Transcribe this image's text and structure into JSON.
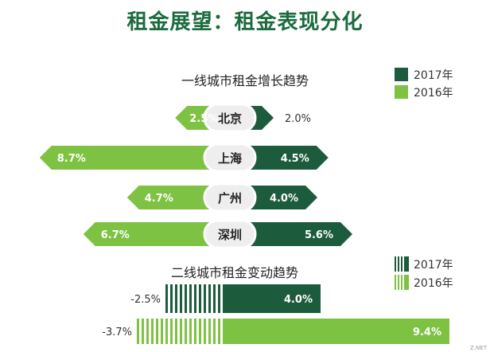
{
  "title": "租金展望：租金表现分化",
  "colors": {
    "y2017": "#1c5c3c",
    "y2016": "#7ec243",
    "title": "#1c6b3f"
  },
  "chart_data": [
    {
      "type": "bar",
      "subtitle": "一线城市租金增长趋势",
      "legend": [
        "2017年",
        "2016年"
      ],
      "categories": [
        "北京",
        "上海",
        "广州",
        "深圳"
      ],
      "series": [
        {
          "name": "2017年",
          "values": [
            2.0,
            4.5,
            4.0,
            5.6
          ],
          "labels": [
            "2.0%",
            "4.5%",
            "4.0%",
            "5.6%"
          ]
        },
        {
          "name": "2016年",
          "values": [
            2.5,
            8.7,
            4.7,
            6.7
          ],
          "labels": [
            "2.5%",
            "8.7%",
            "4.7%",
            "6.7%"
          ]
        }
      ]
    },
    {
      "type": "bar",
      "subtitle": "二线城市租金变动趋势",
      "legend": [
        "2017年",
        "2016年"
      ],
      "series": [
        {
          "name": "2017年",
          "negative": -2.5,
          "positive": 4.0,
          "labels": [
            "-2.5%",
            "4.0%"
          ]
        },
        {
          "name": "2016年",
          "negative": -3.7,
          "positive": 9.4,
          "labels": [
            "-3.7%",
            "9.4%"
          ]
        }
      ]
    }
  ],
  "watermark": "Z.NET"
}
